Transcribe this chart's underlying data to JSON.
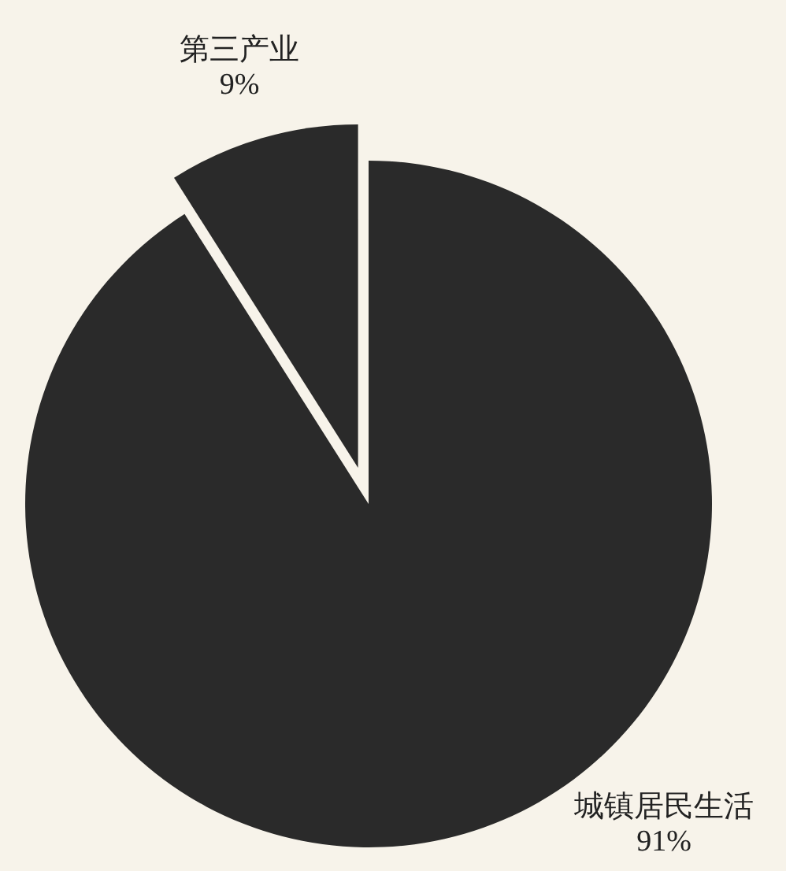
{
  "chart_data": {
    "type": "pie",
    "categories": [
      "城镇居民生活",
      "第三产业"
    ],
    "values": [
      91,
      9
    ],
    "value_labels": [
      "91%",
      "9%"
    ],
    "colors": [
      "#2a2a2a",
      "#2a2a2a"
    ]
  }
}
